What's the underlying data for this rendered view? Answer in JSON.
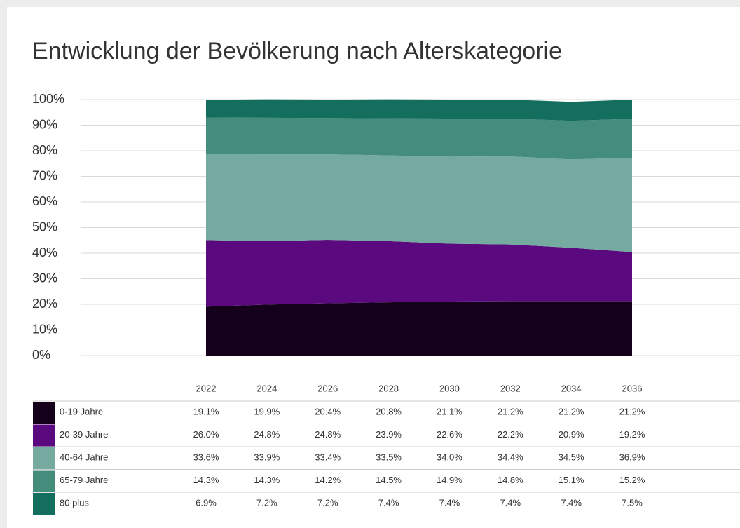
{
  "chart_data": {
    "type": "stacked_area",
    "title": "Entwicklung der Bevölkerung nach Alterskategorie",
    "categories": [
      "2022",
      "2024",
      "2026",
      "2028",
      "2030",
      "2032",
      "2034",
      "2036"
    ],
    "ylim": [
      0,
      100
    ],
    "yticks": [
      {
        "value": 0,
        "label": "0%"
      },
      {
        "value": 10,
        "label": "10%"
      },
      {
        "value": 20,
        "label": "20%"
      },
      {
        "value": 30,
        "label": "30%"
      },
      {
        "value": 40,
        "label": "40%"
      },
      {
        "value": 50,
        "label": "50%"
      },
      {
        "value": 60,
        "label": "60%"
      },
      {
        "value": 70,
        "label": "70%"
      },
      {
        "value": 80,
        "label": "80%"
      },
      {
        "value": 90,
        "label": "90%"
      },
      {
        "value": 100,
        "label": "100%"
      }
    ],
    "grid": true,
    "series": [
      {
        "name": "0-19 Jahre",
        "color": "#14001a",
        "values": [
          19.1,
          19.9,
          20.4,
          20.8,
          21.1,
          21.2,
          21.2,
          21.2
        ],
        "value_labels": [
          "19.1%",
          "19.9%",
          "20.4%",
          "20.8%",
          "21.1%",
          "21.2%",
          "21.2%",
          "21.2%"
        ]
      },
      {
        "name": "20-39 Jahre",
        "color": "#5a0a7e",
        "values": [
          26.0,
          24.8,
          24.8,
          23.9,
          22.6,
          22.2,
          20.9,
          19.2
        ],
        "value_labels": [
          "26.0%",
          "24.8%",
          "24.8%",
          "23.9%",
          "22.6%",
          "22.2%",
          "20.9%",
          "19.2%"
        ]
      },
      {
        "name": "40-64 Jahre",
        "color": "#74aaa0",
        "values": [
          33.6,
          33.9,
          33.4,
          33.5,
          34.0,
          34.4,
          34.5,
          36.9
        ],
        "value_labels": [
          "33.6%",
          "33.9%",
          "33.4%",
          "33.5%",
          "34.0%",
          "34.4%",
          "34.5%",
          "36.9%"
        ]
      },
      {
        "name": "65-79 Jahre",
        "color": "#448c7c",
        "values": [
          14.3,
          14.3,
          14.2,
          14.5,
          14.9,
          14.8,
          15.1,
          15.2
        ],
        "value_labels": [
          "14.3%",
          "14.3%",
          "14.2%",
          "14.5%",
          "14.9%",
          "14.8%",
          "15.1%",
          "15.2%"
        ]
      },
      {
        "name": "80 plus",
        "color": "#146e5e",
        "values": [
          6.9,
          7.2,
          7.2,
          7.4,
          7.4,
          7.4,
          7.4,
          7.5
        ],
        "value_labels": [
          "6.9%",
          "7.2%",
          "7.2%",
          "7.4%",
          "7.4%",
          "7.4%",
          "7.4%",
          "7.5%"
        ]
      }
    ]
  }
}
